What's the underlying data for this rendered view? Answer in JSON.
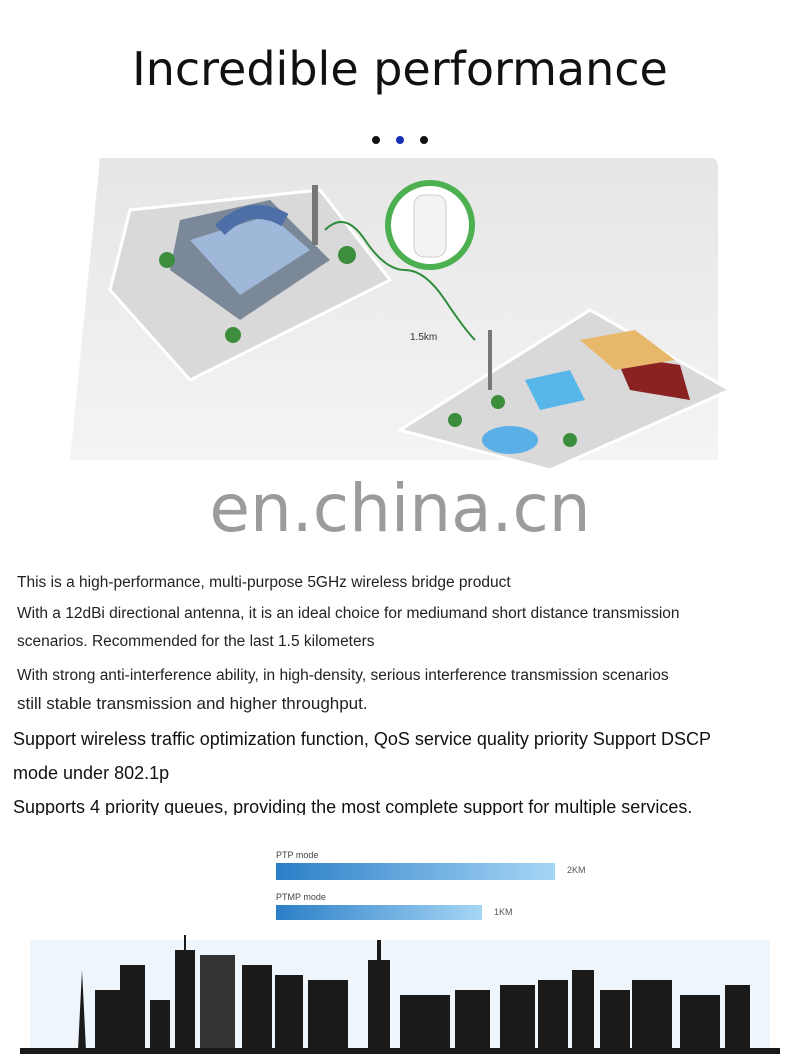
{
  "header": {
    "title": "Incredible performance",
    "carousel_dots": 3,
    "active_dot": 2
  },
  "illustration": {
    "distance_label": "1.5km"
  },
  "watermark": "en.china.cn",
  "description": [
    "This is a high-performance, multi-purpose 5GHz wireless bridge product",
    "With a 12dBi directional antenna, it is an ideal choice for mediumand short distance transmission",
    "scenarios. Recommended for the last 1.5 kilometers",
    "With strong anti-interference ability, in high-density, serious interference transmission scenarios",
    "still stable transmission and higher throughput.",
    "Support wireless traffic optimization function, QoS service quality priority Support DSCP",
    "mode under 802.1p",
    "Supports 4 priority queues, providing the most complete support for multiple services."
  ],
  "range": {
    "modes": [
      {
        "label": "PTP mode",
        "value_label": "2KM"
      },
      {
        "label": "PTMP mode",
        "value_label": "1KM"
      }
    ],
    "bar_color_start": "#2b7fc7",
    "bar_color_end": "#a6d6f5"
  }
}
